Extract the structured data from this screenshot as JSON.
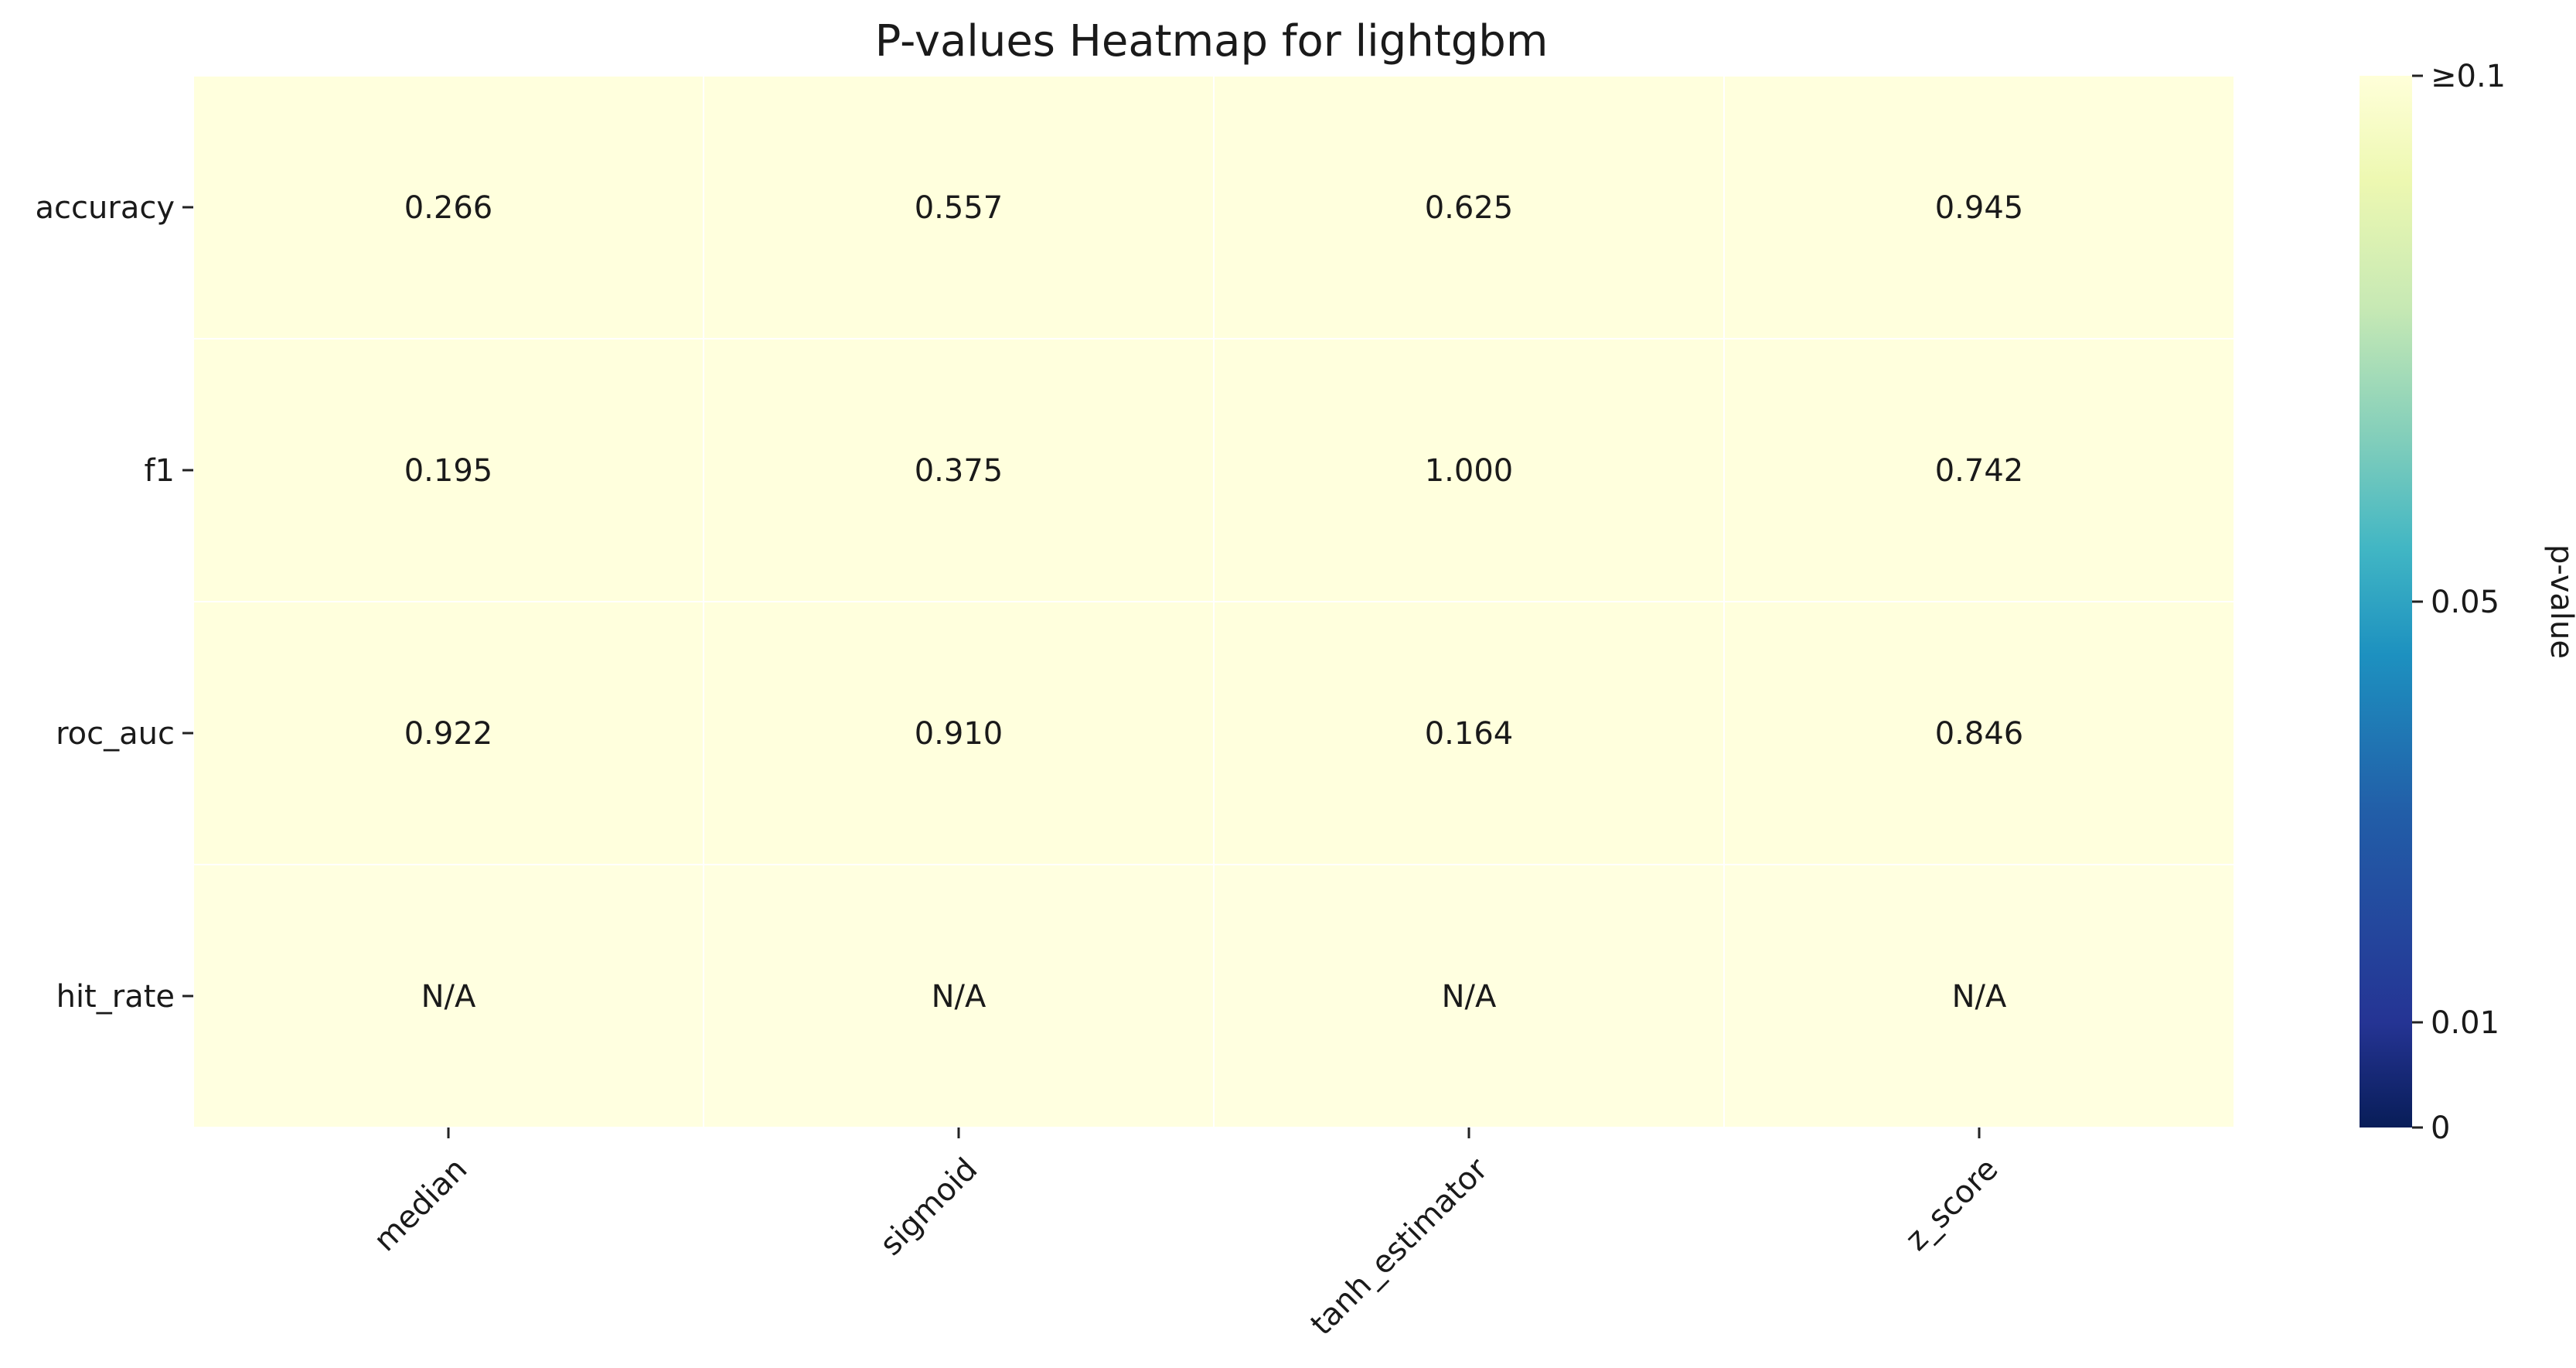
{
  "chart_data": {
    "type": "heatmap",
    "title": "P-values Heatmap for lightgbm",
    "rows": [
      "accuracy",
      "f1",
      "roc_auc",
      "hit_rate"
    ],
    "columns": [
      "median",
      "sigmoid",
      "tanh_estimator",
      "z_score"
    ],
    "values": [
      [
        0.266,
        0.557,
        0.625,
        0.945
      ],
      [
        0.195,
        0.375,
        1.0,
        0.742
      ],
      [
        0.922,
        0.91,
        0.164,
        0.846
      ],
      [
        null,
        null,
        null,
        null
      ]
    ],
    "cell_labels": [
      [
        "0.266",
        "0.557",
        "0.625",
        "0.945"
      ],
      [
        "0.195",
        "0.375",
        "1.000",
        "0.742"
      ],
      [
        "0.922",
        "0.910",
        "0.164",
        "0.846"
      ],
      [
        "N/A",
        "N/A",
        "N/A",
        "N/A"
      ]
    ],
    "missing_value_color": "#ffffe0",
    "colormap": "YlGnBu",
    "colorbar": {
      "label": "p-value",
      "range": [
        0,
        0.1
      ],
      "ticks": [
        {
          "value": 0,
          "label": "0"
        },
        {
          "value": 0.01,
          "label": "0.01"
        },
        {
          "value": 0.05,
          "label": "0.05"
        },
        {
          "value": 0.1,
          "label": "≥0.1"
        }
      ],
      "gradient_stops": [
        {
          "value": 0.0,
          "color": "#081d58"
        },
        {
          "value": 0.01,
          "color": "#253494"
        },
        {
          "value": 0.03,
          "color": "#225ea8"
        },
        {
          "value": 0.045,
          "color": "#1d91c0"
        },
        {
          "value": 0.055,
          "color": "#41b6c4"
        },
        {
          "value": 0.065,
          "color": "#7fcdbb"
        },
        {
          "value": 0.078,
          "color": "#c7e9b4"
        },
        {
          "value": 0.09,
          "color": "#edf8b1"
        },
        {
          "value": 0.1,
          "color": "#ffffd9"
        }
      ]
    },
    "cell_color_at_max": "#ffffdd",
    "grid_line_color": "#ffffff"
  }
}
